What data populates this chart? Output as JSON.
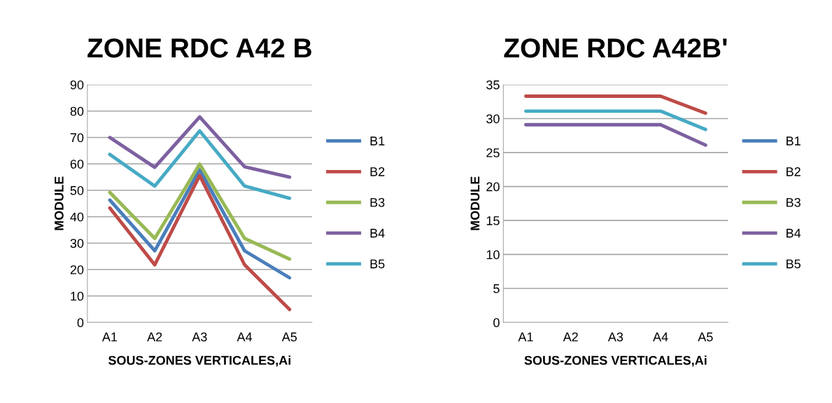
{
  "chart_data": [
    {
      "type": "line",
      "title": "ZONE RDC A42 B",
      "xlabel": "SOUS-ZONES VERTICALES,Ai",
      "ylabel": "MODULE",
      "categories": [
        "A1",
        "A2",
        "A3",
        "A4",
        "A5"
      ],
      "ylim": [
        0,
        90
      ],
      "yticks": [
        0,
        10,
        20,
        30,
        40,
        50,
        60,
        70,
        80,
        90
      ],
      "grid": "y",
      "legend": "right",
      "marker": "none",
      "series": [
        {
          "name": "B1",
          "color": "#4a7ebb",
          "values": [
            46.3,
            27.1,
            57.8,
            27.1,
            16.9
          ]
        },
        {
          "name": "B2",
          "color": "#be4b48",
          "values": [
            43.3,
            21.8,
            55.6,
            21.8,
            4.9
          ]
        },
        {
          "name": "B3",
          "color": "#98b954",
          "values": [
            49.2,
            31.8,
            59.9,
            31.8,
            24
          ]
        },
        {
          "name": "B4",
          "color": "#7d60a0",
          "values": [
            70,
            58.7,
            77.8,
            58.9,
            55
          ]
        },
        {
          "name": "B5",
          "color": "#46aac5",
          "values": [
            63.6,
            51.6,
            72.5,
            51.6,
            47
          ]
        }
      ]
    },
    {
      "type": "line",
      "title": "ZONE RDC A42B'",
      "xlabel": "SOUS-ZONES VERTICALES,Ai",
      "ylabel": "MODULE",
      "categories": [
        "A1",
        "A2",
        "A3",
        "A4",
        "A5"
      ],
      "ylim": [
        0,
        35
      ],
      "yticks": [
        0,
        5,
        10,
        15,
        20,
        25,
        30,
        35
      ],
      "grid": "y",
      "legend": "right",
      "marker": "none",
      "series": [
        {
          "name": "B1",
          "color": "#4a7ebb",
          "values": [
            null,
            null,
            null,
            null,
            null
          ]
        },
        {
          "name": "B2",
          "color": "#be4b48",
          "values": [
            33.3,
            33.3,
            33.3,
            33.3,
            30.8
          ]
        },
        {
          "name": "B3",
          "color": "#98b954",
          "values": [
            null,
            null,
            null,
            null,
            null
          ]
        },
        {
          "name": "B4",
          "color": "#7d60a0",
          "values": [
            29.1,
            29.1,
            29.1,
            29.1,
            26.1
          ]
        },
        {
          "name": "B5",
          "color": "#46aac5",
          "values": [
            31.1,
            31.1,
            31.1,
            31.1,
            28.4
          ]
        }
      ]
    }
  ]
}
